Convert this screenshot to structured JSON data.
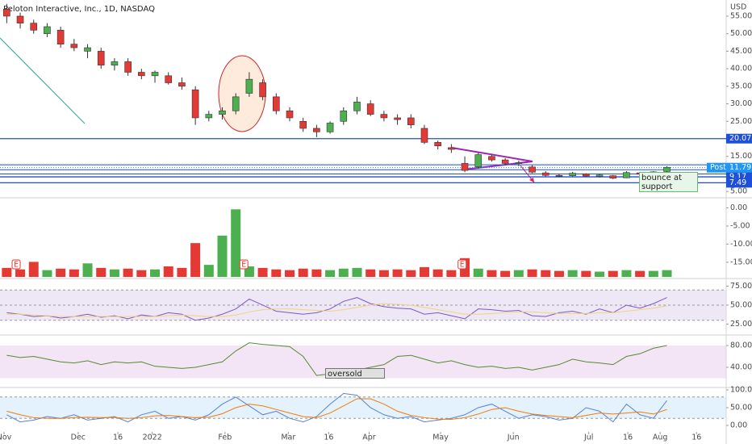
{
  "chart_data": [
    {
      "type": "candlestick",
      "title": "Peloton Interactive, Inc., 1D, NASDAQ",
      "currency": "USD",
      "up_color": "#4caf50",
      "down_color": "#e53935",
      "candles": [
        [
          57,
          58.5,
          53,
          55
        ],
        [
          55,
          56,
          51.5,
          53
        ],
        [
          53,
          54,
          50,
          51
        ],
        [
          50,
          53,
          49,
          52
        ],
        [
          51,
          52,
          46,
          47
        ],
        [
          47,
          48.5,
          45,
          46
        ],
        [
          45,
          47,
          43,
          46
        ],
        [
          45,
          46,
          40,
          41
        ],
        [
          41,
          43,
          39.5,
          42
        ],
        [
          42,
          43,
          38,
          39
        ],
        [
          39,
          40,
          37,
          38
        ],
        [
          38,
          39.5,
          36,
          39
        ],
        [
          38,
          39,
          35.5,
          36
        ],
        [
          36,
          37.5,
          34,
          35
        ],
        [
          34,
          35,
          24,
          26
        ],
        [
          26,
          28,
          25,
          27
        ],
        [
          27,
          29,
          25.5,
          28
        ],
        [
          28,
          33,
          27,
          32
        ],
        [
          33,
          39,
          32,
          37
        ],
        [
          36,
          37,
          31,
          32
        ],
        [
          32,
          33,
          27,
          28
        ],
        [
          28,
          29,
          25,
          26
        ],
        [
          25,
          26,
          22,
          23
        ],
        [
          23,
          24,
          20.5,
          22
        ],
        [
          22,
          25,
          21.5,
          24.5
        ],
        [
          25,
          29,
          24,
          28
        ],
        [
          28,
          32,
          27,
          30.5
        ],
        [
          30,
          31,
          26.5,
          27
        ],
        [
          27,
          28,
          25,
          26
        ],
        [
          26,
          27,
          24,
          25.5
        ],
        [
          26,
          27,
          23,
          24
        ],
        [
          23,
          24,
          18.5,
          19
        ],
        [
          19,
          19.5,
          17,
          18
        ],
        [
          17.5,
          18.5,
          16,
          17
        ],
        [
          13,
          15,
          10.5,
          11
        ],
        [
          12,
          16,
          11.5,
          15.5
        ],
        [
          15,
          15.5,
          13.5,
          14
        ],
        [
          14,
          14.5,
          12.5,
          13
        ],
        [
          13,
          13.8,
          12.2,
          13.2
        ],
        [
          12,
          12.5,
          10.2,
          10.5
        ],
        [
          10.3,
          10.8,
          9.3,
          9.6
        ],
        [
          9.6,
          10,
          9.1,
          9.5
        ],
        [
          9.5,
          10.6,
          9.3,
          10.2
        ],
        [
          10,
          10.2,
          9.1,
          9.4
        ],
        [
          9.3,
          9.9,
          9,
          9.7
        ],
        [
          9.5,
          9.7,
          8.5,
          8.8
        ],
        [
          8.9,
          10.8,
          8.8,
          10.4
        ],
        [
          10.3,
          10.6,
          9.6,
          9.9
        ],
        [
          9.9,
          10.8,
          9.7,
          10.6
        ],
        [
          10.7,
          12.2,
          10.5,
          11.9
        ]
      ],
      "xlim": [
        -0.5,
        53.4
      ],
      "xticks": [
        {
          "value": -0.2,
          "label": "Nov"
        },
        {
          "value": 5.3,
          "label": "Dec"
        },
        {
          "value": 8.25,
          "label": "16"
        },
        {
          "value": 10.8,
          "label": "2022"
        },
        {
          "value": 16.2,
          "label": "Feb"
        },
        {
          "value": 20.9,
          "label": "Mar"
        },
        {
          "value": 23.9,
          "label": "16"
        },
        {
          "value": 26.9,
          "label": "Apr"
        },
        {
          "value": 32.2,
          "label": "May"
        },
        {
          "value": 37.6,
          "label": "Jun"
        },
        {
          "value": 43.2,
          "label": "Jul"
        },
        {
          "value": 46.1,
          "label": "16"
        },
        {
          "value": 48.5,
          "label": "Aug"
        },
        {
          "value": 51.2,
          "label": "16"
        }
      ],
      "ylim": [
        3.2,
        59.6
      ],
      "yticks": [
        {
          "value": 55,
          "label": "55.00"
        },
        {
          "value": 50,
          "label": "50.00"
        },
        {
          "value": 45,
          "label": "45.00"
        },
        {
          "value": 40,
          "label": "40.00"
        },
        {
          "value": 35,
          "label": "35.00"
        },
        {
          "value": 30,
          "label": "30.00"
        },
        {
          "value": 25,
          "label": "25.00"
        },
        {
          "value": 20,
          "label": "20.00"
        },
        {
          "value": 15,
          "label": "15.00"
        },
        {
          "value": 10,
          "label": "10.00"
        },
        {
          "value": 5,
          "label": "5.00"
        }
      ],
      "levels": [
        20.07,
        9.17,
        7.49
      ],
      "extra_levels": [
        12.6,
        11.2,
        10.0
      ],
      "level_color": "#1e4fd8",
      "last_price": {
        "value": 11.79,
        "tag": "Post"
      },
      "annotations": [
        "bounce at support"
      ]
    },
    {
      "type": "bar",
      "volume": [
        12,
        10,
        20,
        9,
        11,
        10,
        18,
        12,
        10,
        11,
        9,
        10,
        14,
        12,
        45,
        16,
        55,
        90,
        14,
        12,
        10,
        9,
        11,
        10,
        9,
        11,
        12,
        10,
        9,
        10,
        9,
        13,
        10,
        9,
        25,
        11,
        9,
        8,
        9,
        10,
        9,
        8,
        9,
        8,
        7,
        8,
        9,
        8,
        8,
        9
      ],
      "volume_lim": [
        0,
        100
      ],
      "ylim": [
        -19.5,
        2.8
      ],
      "yticks": [
        {
          "value": 0,
          "label": "0.00"
        },
        {
          "value": -5,
          "label": "-5.00"
        },
        {
          "value": -10,
          "label": "-10.00"
        },
        {
          "value": -15,
          "label": "-15.00"
        }
      ],
      "events": [
        {
          "x": 0.7,
          "label": "E"
        },
        {
          "x": 17.6,
          "label": "E"
        },
        {
          "x": 33.8,
          "label": "E"
        }
      ]
    },
    {
      "type": "line",
      "ylim": [
        10.6,
        85.1
      ],
      "band": [
        30,
        70
      ],
      "guides": [
        30,
        50,
        70
      ],
      "band_color": "#ede7f6",
      "yticks": [
        {
          "value": 75,
          "label": "75.00"
        },
        {
          "value": 50,
          "label": "50.00"
        },
        {
          "value": 25,
          "label": "25.00"
        }
      ],
      "series": [
        {
          "color": "#7e57c2",
          "values": [
            40,
            38,
            35,
            36,
            33,
            35,
            38,
            34,
            36,
            32,
            37,
            35,
            40,
            38,
            30,
            33,
            38,
            45,
            58,
            50,
            42,
            40,
            38,
            40,
            45,
            55,
            60,
            52,
            48,
            46,
            45,
            38,
            40,
            36,
            32,
            45,
            44,
            42,
            43,
            36,
            35,
            40,
            42,
            38,
            45,
            40,
            50,
            46,
            52,
            60
          ]
        },
        {
          "color": "#f3d37a",
          "values": [
            38,
            38,
            37,
            36,
            35,
            35,
            35,
            35,
            35,
            35,
            35,
            35,
            36,
            37,
            36,
            35,
            35,
            37,
            41,
            44,
            45,
            45,
            44,
            43,
            42,
            44,
            47,
            50,
            52,
            51,
            50,
            47,
            44,
            41,
            38,
            38,
            39,
            40,
            41,
            41,
            40,
            39,
            39,
            39,
            40,
            40,
            42,
            44,
            46,
            49
          ]
        }
      ]
    },
    {
      "type": "line",
      "ylim": [
        3.0,
        99.3
      ],
      "band": [
        20,
        80
      ],
      "guides": [],
      "band_color": "#f3e5f5",
      "yticks": [
        {
          "value": 80,
          "label": "80.00"
        },
        {
          "value": 40,
          "label": "40.00"
        }
      ],
      "annotations": [
        "oversold"
      ],
      "series": [
        {
          "color": "#558b2f",
          "values": [
            62,
            58,
            60,
            55,
            50,
            48,
            52,
            45,
            50,
            48,
            50,
            42,
            40,
            38,
            40,
            45,
            50,
            70,
            85,
            82,
            80,
            78,
            60,
            25,
            28,
            30,
            35,
            40,
            45,
            60,
            62,
            55,
            48,
            52,
            45,
            40,
            42,
            38,
            40,
            35,
            40,
            45,
            55,
            50,
            48,
            45,
            60,
            65,
            75,
            80
          ]
        }
      ]
    },
    {
      "type": "line",
      "ylim": [
        -18.2,
        106.8
      ],
      "band": [
        20,
        80
      ],
      "guides": [
        20,
        80
      ],
      "band_color": "#e3f2fd",
      "yticks": [
        {
          "value": 100,
          "label": "100.00"
        },
        {
          "value": 50,
          "label": "50.00"
        },
        {
          "value": 0,
          "label": "0.00"
        }
      ],
      "series": [
        {
          "color": "#5b7fd6",
          "values": [
            30,
            10,
            15,
            25,
            20,
            30,
            15,
            20,
            25,
            10,
            30,
            40,
            20,
            25,
            15,
            30,
            60,
            80,
            55,
            30,
            40,
            20,
            10,
            25,
            60,
            90,
            85,
            50,
            30,
            20,
            25,
            10,
            15,
            20,
            30,
            50,
            60,
            40,
            20,
            30,
            25,
            15,
            20,
            50,
            40,
            10,
            60,
            30,
            20,
            70
          ]
        },
        {
          "color": "#f57c00",
          "values": [
            40,
            30,
            22,
            20,
            20,
            22,
            23,
            22,
            22,
            20,
            22,
            27,
            28,
            25,
            22,
            23,
            33,
            50,
            60,
            55,
            45,
            35,
            25,
            22,
            35,
            55,
            75,
            75,
            60,
            40,
            28,
            22,
            18,
            17,
            22,
            32,
            45,
            50,
            40,
            32,
            28,
            25,
            22,
            28,
            35,
            32,
            35,
            38,
            32,
            45
          ]
        }
      ]
    }
  ]
}
